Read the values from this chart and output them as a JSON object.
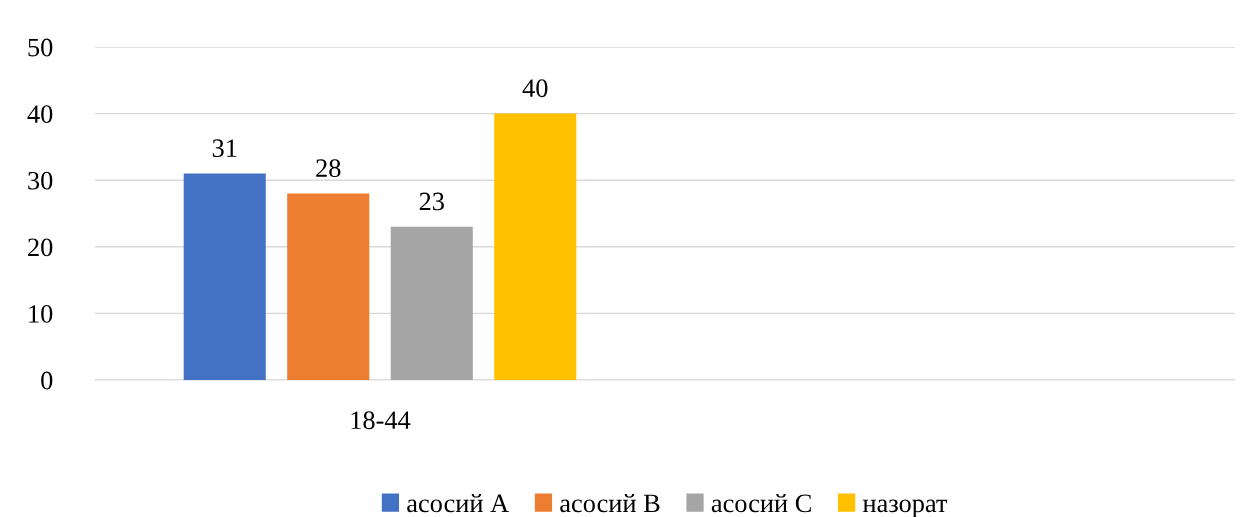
{
  "chart_data": {
    "type": "bar",
    "categories": [
      "18-44",
      null
    ],
    "series": [
      {
        "name": "асосий А",
        "color": "#4472c4",
        "values": [
          31,
          null
        ]
      },
      {
        "name": "асосий В",
        "color": "#ed7d31",
        "values": [
          28,
          null
        ]
      },
      {
        "name": "асосий С",
        "color": "#a5a5a5",
        "values": [
          23,
          null
        ]
      },
      {
        "name": "назорат",
        "color": "#ffc000",
        "values": [
          40,
          null
        ]
      }
    ],
    "ylim": [
      0,
      50
    ],
    "yticks": [
      0,
      10,
      20,
      30,
      40,
      50
    ],
    "grid": "y",
    "legend": "bottom",
    "data_labels": true
  }
}
